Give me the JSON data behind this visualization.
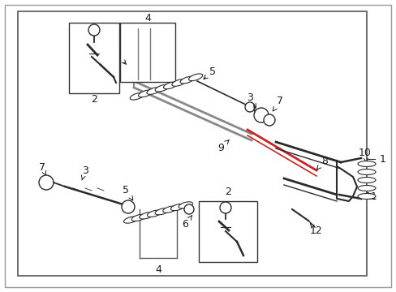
{
  "bg_color": "#ffffff",
  "line_color": "#2a2a2a",
  "label_color": "#1a1a1a",
  "border_color": "#888888",
  "figsize": [
    4.89,
    3.6
  ],
  "dpi": 100
}
